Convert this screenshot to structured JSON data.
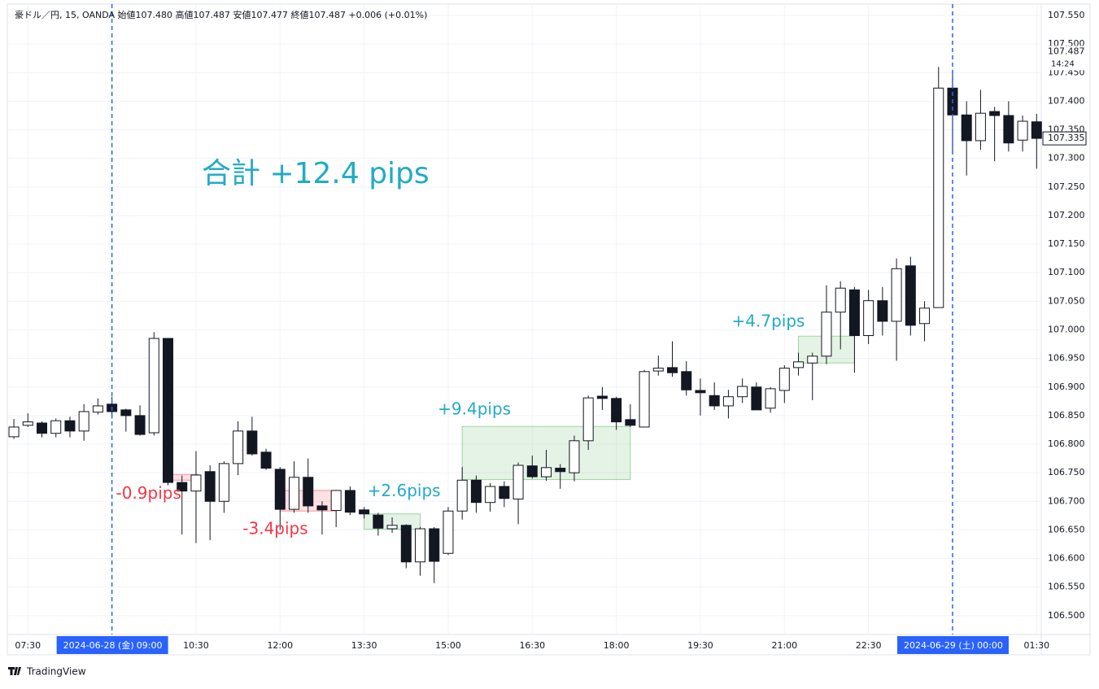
{
  "chart_data": {
    "type": "candlestick",
    "header": "豪ドル／円, 15, OANDA  始値107.480  高値107.487  安値107.477  終値107.487  +0.006 (+0.01%)",
    "annotation": "合計 +12.4 pips",
    "open": [
      106.813,
      106.833,
      106.837,
      106.819,
      106.841,
      106.823,
      106.856,
      106.87,
      106.86,
      106.85,
      106.82,
      106.985,
      106.733,
      106.718,
      106.752,
      106.7,
      106.766,
      106.823,
      106.786,
      106.756,
      106.686,
      106.742,
      106.692,
      106.684,
      106.719,
      106.685,
      106.676,
      106.652,
      106.658,
      106.594,
      106.652,
      106.609,
      106.683,
      106.737,
      106.698,
      106.726,
      106.704,
      106.762,
      106.743,
      106.758,
      106.75,
      106.806,
      106.884,
      106.88,
      106.843,
      106.83,
      106.928,
      106.934,
      106.927,
      106.894,
      106.885,
      106.867,
      106.883,
      106.9,
      106.863,
      106.894,
      106.934,
      106.942,
      106.954,
      107.031,
      107.07,
      106.99,
      107.051,
      107.015,
      107.112,
      107.011,
      107.039,
      107.423,
      107.376,
      107.331,
      107.382,
      107.375,
      107.332,
      107.364
    ],
    "high": [
      106.844,
      106.854,
      106.84,
      106.845,
      106.848,
      106.87,
      106.88,
      106.883,
      106.862,
      106.868,
      106.996,
      106.985,
      106.745,
      106.788,
      106.763,
      106.77,
      106.84,
      106.848,
      106.792,
      106.76,
      106.77,
      106.775,
      106.7,
      106.72,
      106.726,
      106.69,
      106.68,
      106.672,
      106.66,
      106.655,
      106.655,
      106.69,
      106.76,
      106.745,
      106.732,
      106.735,
      106.768,
      106.78,
      106.79,
      106.765,
      106.815,
      106.885,
      106.9,
      106.883,
      106.87,
      106.93,
      106.955,
      106.98,
      106.945,
      106.915,
      106.908,
      106.895,
      106.915,
      106.908,
      106.9,
      106.938,
      106.96,
      106.96,
      107.078,
      107.085,
      107.075,
      107.07,
      107.075,
      107.125,
      107.128,
      107.05,
      107.46,
      107.455,
      107.4,
      107.42,
      107.39,
      107.4,
      107.375,
      107.378
    ],
    "low": [
      106.809,
      106.83,
      106.812,
      106.812,
      106.812,
      106.806,
      106.852,
      106.845,
      106.822,
      106.815,
      106.815,
      106.728,
      106.642,
      106.627,
      106.632,
      106.68,
      106.746,
      106.78,
      106.755,
      106.65,
      106.68,
      106.68,
      106.642,
      106.655,
      106.676,
      106.67,
      106.64,
      106.645,
      106.583,
      106.57,
      106.557,
      106.606,
      106.668,
      106.68,
      106.682,
      106.69,
      106.66,
      106.74,
      106.736,
      106.722,
      106.735,
      106.79,
      106.86,
      106.825,
      106.83,
      106.83,
      106.92,
      106.918,
      106.885,
      106.85,
      106.86,
      106.845,
      106.872,
      106.86,
      106.855,
      106.872,
      106.92,
      106.877,
      106.94,
      106.966,
      106.925,
      106.975,
      106.99,
      106.946,
      106.99,
      106.98,
      107.039,
      107.31,
      107.27,
      107.315,
      107.295,
      107.312,
      107.312,
      107.282
    ],
    "close": [
      106.83,
      106.839,
      106.819,
      106.841,
      106.823,
      106.857,
      106.867,
      106.857,
      106.85,
      106.817,
      106.985,
      106.733,
      106.718,
      106.746,
      106.7,
      106.766,
      106.823,
      106.783,
      106.758,
      106.686,
      106.742,
      106.692,
      106.685,
      106.719,
      106.681,
      106.678,
      106.653,
      106.658,
      106.594,
      106.652,
      106.595,
      106.683,
      106.737,
      106.698,
      106.726,
      106.705,
      106.763,
      106.743,
      106.759,
      106.752,
      106.806,
      106.881,
      106.88,
      106.839,
      106.833,
      106.927,
      106.933,
      106.925,
      106.895,
      106.89,
      106.867,
      106.883,
      106.901,
      106.86,
      106.897,
      106.933,
      106.944,
      106.954,
      107.031,
      107.073,
      106.99,
      107.051,
      107.015,
      107.107,
      107.008,
      107.038,
      107.423,
      107.376,
      107.331,
      107.379,
      107.375,
      107.327,
      107.365,
      107.335
    ],
    "up_color": "#ffffff",
    "down_color": "#131722",
    "xlim": [
      -0.41,
      73.33
    ],
    "ylim": [
      106.467,
      107.57
    ],
    "yticks": [
      {
        "value": 107.55,
        "label": "107.550"
      },
      {
        "value": 107.5,
        "label": "107.500"
      },
      {
        "value": 107.45,
        "label": "107.450"
      },
      {
        "value": 107.4,
        "label": "107.400"
      },
      {
        "value": 107.35,
        "label": "107.350"
      },
      {
        "value": 107.3,
        "label": "107.300"
      },
      {
        "value": 107.25,
        "label": "107.250"
      },
      {
        "value": 107.2,
        "label": "107.200"
      },
      {
        "value": 107.15,
        "label": "107.150"
      },
      {
        "value": 107.1,
        "label": "107.100"
      },
      {
        "value": 107.05,
        "label": "107.050"
      },
      {
        "value": 107,
        "label": "107.000"
      },
      {
        "value": 106.95,
        "label": "106.950"
      },
      {
        "value": 106.9,
        "label": "106.900"
      },
      {
        "value": 106.85,
        "label": "106.850"
      },
      {
        "value": 106.8,
        "label": "106.800"
      },
      {
        "value": 106.75,
        "label": "106.750"
      },
      {
        "value": 106.7,
        "label": "106.700"
      },
      {
        "value": 106.65,
        "label": "106.650"
      },
      {
        "value": 106.6,
        "label": "106.600"
      },
      {
        "value": 106.55,
        "label": "106.550"
      },
      {
        "value": 106.5,
        "label": "106.500"
      }
    ],
    "xticks": [
      {
        "value": 1,
        "label": "07:30"
      },
      {
        "value": 7,
        "label": "09:00",
        "date": "2024-06-28 (金)"
      },
      {
        "value": 13,
        "label": "10:30"
      },
      {
        "value": 19,
        "label": "12:00"
      },
      {
        "value": 25,
        "label": "13:30"
      },
      {
        "value": 31,
        "label": "15:00"
      },
      {
        "value": 37,
        "label": "16:30"
      },
      {
        "value": 43,
        "label": "18:00"
      },
      {
        "value": 49,
        "label": "19:30"
      },
      {
        "value": 55,
        "label": "21:00"
      },
      {
        "value": 61,
        "label": "22:30"
      },
      {
        "value": 67,
        "label": "00:00",
        "date": "2024-06-29 (土)"
      },
      {
        "value": 73,
        "label": "01:30"
      }
    ],
    "grid": true,
    "price_markers": [
      {
        "value": 107.487,
        "label": "107.487",
        "sub": "14:24"
      },
      {
        "value": 107.335,
        "label": "107.335",
        "boxed": true
      }
    ],
    "boxes": [
      {
        "label": "-0.9pips",
        "color": "#f23645",
        "x": [
          11,
          13.2
        ],
        "y": [
          106.737,
          106.747
        ]
      },
      {
        "label": "-3.4pips",
        "color": "#f23645",
        "x": [
          19,
          23
        ],
        "y": [
          106.683,
          106.719
        ]
      },
      {
        "label": "+2.6pips",
        "color": "#4caf50",
        "text_color": "#22abc5",
        "x": [
          25,
          29
        ],
        "y": [
          106.651,
          106.678
        ]
      },
      {
        "label": "+9.4pips",
        "color": "#4caf50",
        "text_color": "#22abc5",
        "x": [
          32,
          44
        ],
        "y": [
          106.738,
          106.831
        ]
      },
      {
        "label": "+4.7pips",
        "color": "#4caf50",
        "text_color": "#22abc5",
        "x": [
          56,
          60
        ],
        "y": [
          106.942,
          106.989
        ]
      }
    ],
    "footer": "TradingView"
  }
}
